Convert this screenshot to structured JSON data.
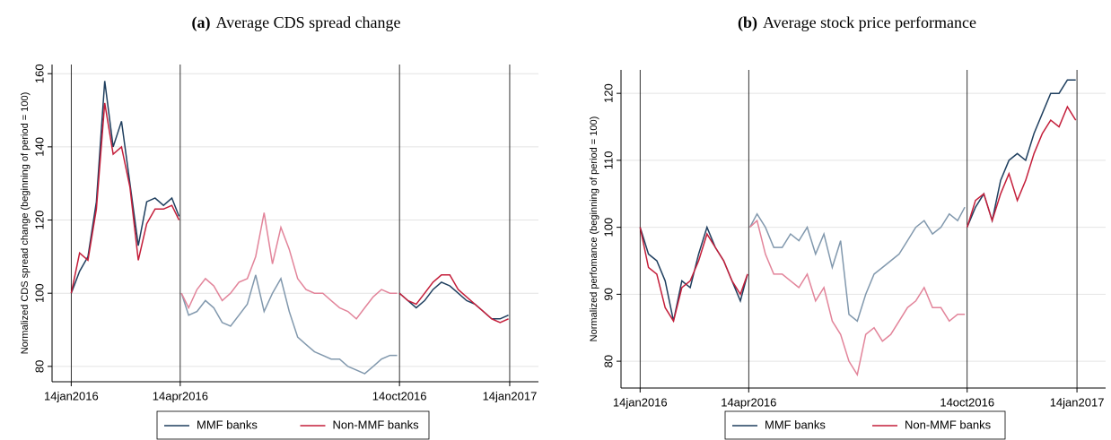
{
  "chart_data": [
    {
      "type": "line",
      "panel": "(a)",
      "title": "Average CDS spread change",
      "y_label": "Normalized CDS spread change (beginning of period = 100)",
      "xlim": [
        "2015-12-29",
        "2017-02-07"
      ],
      "xticks": [
        {
          "value": "2016-01-14",
          "label": "14jan2016"
        },
        {
          "value": "2016-04-14",
          "label": "14apr2016"
        },
        {
          "value": "2016-10-14",
          "label": "14oct2016"
        },
        {
          "value": "2017-01-14",
          "label": "14jan2017"
        }
      ],
      "ylim": [
        75.8,
        162.5
      ],
      "yticks": [
        80,
        100,
        120,
        140,
        160
      ],
      "grid": true,
      "faded_period": [
        "2016-04-14",
        "2016-10-14"
      ],
      "x": [
        "2016-01-14",
        "2016-01-21",
        "2016-01-28",
        "2016-02-04",
        "2016-02-11",
        "2016-02-18",
        "2016-02-25",
        "2016-03-03",
        "2016-03-10",
        "2016-03-17",
        "2016-03-24",
        "2016-03-31",
        "2016-04-07",
        "2016-04-13",
        "2016-04-14",
        "2016-04-15",
        "2016-04-21",
        "2016-04-28",
        "2016-05-05",
        "2016-05-12",
        "2016-05-19",
        "2016-05-26",
        "2016-06-02",
        "2016-06-09",
        "2016-06-16",
        "2016-06-23",
        "2016-06-30",
        "2016-07-07",
        "2016-07-14",
        "2016-07-21",
        "2016-07-28",
        "2016-08-04",
        "2016-08-11",
        "2016-08-18",
        "2016-08-25",
        "2016-09-01",
        "2016-09-08",
        "2016-09-15",
        "2016-09-22",
        "2016-09-29",
        "2016-10-06",
        "2016-10-12",
        "2016-10-13",
        "2016-10-14",
        "2016-10-21",
        "2016-10-28",
        "2016-11-04",
        "2016-11-11",
        "2016-11-18",
        "2016-11-25",
        "2016-12-02",
        "2016-12-09",
        "2016-12-16",
        "2016-12-23",
        "2016-12-30",
        "2017-01-06",
        "2017-01-13"
      ],
      "series": [
        {
          "name": "MMF banks",
          "color": "#1f3f5f",
          "faded_color": "#8198ad",
          "values": [
            100,
            106,
            110,
            125,
            158,
            140,
            147,
            130,
            113,
            125,
            126,
            124,
            126,
            121,
            null,
            100,
            94,
            95,
            98,
            96,
            92,
            91,
            94,
            97,
            105,
            95,
            100,
            104,
            95,
            88,
            86,
            84,
            83,
            82,
            82,
            80,
            79,
            78,
            80,
            82,
            83,
            83,
            null,
            100,
            98,
            96,
            98,
            101,
            103,
            102,
            100,
            98,
            97,
            95,
            93,
            93,
            94
          ]
        },
        {
          "name": "Non-MMF banks",
          "color": "#c41e3a",
          "faded_color": "#e2849a",
          "values": [
            100,
            111,
            109,
            123,
            152,
            138,
            140,
            129,
            109,
            119,
            123,
            123,
            124,
            120,
            null,
            100,
            96,
            101,
            104,
            102,
            98,
            100,
            103,
            104,
            110,
            122,
            108,
            118,
            112,
            104,
            101,
            100,
            100,
            98,
            96,
            95,
            93,
            96,
            99,
            101,
            100,
            100,
            null,
            100,
            98,
            97,
            100,
            103,
            105,
            105,
            101,
            99,
            97,
            95,
            93,
            92,
            93
          ]
        }
      ]
    },
    {
      "type": "line",
      "panel": "(b)",
      "title": "Average stock price performance",
      "y_label": "Normalized perfomance (beginning of period = 100)",
      "xlim": [
        "2015-12-29",
        "2017-02-07"
      ],
      "xticks": [
        {
          "value": "2016-01-14",
          "label": "14jan2016"
        },
        {
          "value": "2016-04-14",
          "label": "14apr2016"
        },
        {
          "value": "2016-10-14",
          "label": "14oct2016"
        },
        {
          "value": "2017-01-14",
          "label": "14jan2017"
        }
      ],
      "ylim": [
        76,
        123.5
      ],
      "yticks": [
        80,
        90,
        100,
        110,
        120
      ],
      "grid": true,
      "faded_period": [
        "2016-04-14",
        "2016-10-14"
      ],
      "x": [
        "2016-01-14",
        "2016-01-21",
        "2016-01-28",
        "2016-02-04",
        "2016-02-11",
        "2016-02-18",
        "2016-02-25",
        "2016-03-03",
        "2016-03-10",
        "2016-03-17",
        "2016-03-24",
        "2016-03-31",
        "2016-04-07",
        "2016-04-13",
        "2016-04-14",
        "2016-04-15",
        "2016-04-21",
        "2016-04-28",
        "2016-05-05",
        "2016-05-12",
        "2016-05-19",
        "2016-05-26",
        "2016-06-02",
        "2016-06-09",
        "2016-06-16",
        "2016-06-23",
        "2016-06-30",
        "2016-07-07",
        "2016-07-14",
        "2016-07-21",
        "2016-07-28",
        "2016-08-04",
        "2016-08-11",
        "2016-08-18",
        "2016-08-25",
        "2016-09-01",
        "2016-09-08",
        "2016-09-15",
        "2016-09-22",
        "2016-09-29",
        "2016-10-06",
        "2016-10-12",
        "2016-10-13",
        "2016-10-14",
        "2016-10-21",
        "2016-10-28",
        "2016-11-04",
        "2016-11-11",
        "2016-11-18",
        "2016-11-25",
        "2016-12-02",
        "2016-12-09",
        "2016-12-16",
        "2016-12-23",
        "2016-12-30",
        "2017-01-06",
        "2017-01-13"
      ],
      "series": [
        {
          "name": "MMF banks",
          "color": "#1f3f5f",
          "faded_color": "#8198ad",
          "values": [
            100,
            96,
            95,
            92,
            86,
            92,
            91,
            96,
            100,
            97,
            95,
            92,
            89,
            93,
            null,
            100,
            102,
            100,
            97,
            97,
            99,
            98,
            100,
            96,
            99,
            94,
            98,
            87,
            86,
            90,
            93,
            94,
            95,
            96,
            98,
            100,
            101,
            99,
            100,
            102,
            101,
            103,
            null,
            100,
            103,
            105,
            101,
            107,
            110,
            111,
            110,
            114,
            117,
            120,
            120,
            122,
            122
          ]
        },
        {
          "name": "Non-MMF banks",
          "color": "#c41e3a",
          "faded_color": "#e2849a",
          "values": [
            100,
            94,
            93,
            88,
            86,
            91,
            92,
            95,
            99,
            97,
            95,
            92,
            90,
            93,
            null,
            100,
            101,
            96,
            93,
            93,
            92,
            91,
            93,
            89,
            91,
            86,
            84,
            80,
            78,
            84,
            85,
            83,
            84,
            86,
            88,
            89,
            91,
            88,
            88,
            86,
            87,
            87,
            null,
            100,
            104,
            105,
            101,
            105,
            108,
            104,
            107,
            111,
            114,
            116,
            115,
            118,
            116
          ]
        }
      ]
    }
  ]
}
